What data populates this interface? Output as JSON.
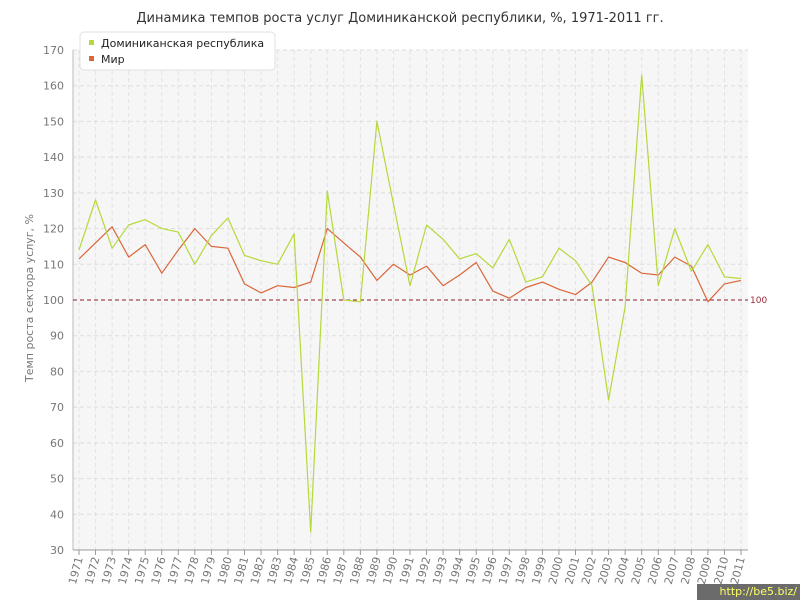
{
  "chart_data": {
    "type": "line",
    "title": "Динамика темпов роста услуг Доминиканской республики, %, 1971-2011 гг.",
    "xlabel": "",
    "ylabel": "Темп роста сектора услуг, %",
    "ylim": [
      30,
      170
    ],
    "yticks": [
      30,
      40,
      50,
      60,
      70,
      80,
      90,
      100,
      110,
      120,
      130,
      140,
      150,
      160,
      170
    ],
    "grid": true,
    "legend_position": "top-left",
    "x": [
      "1971",
      "1972",
      "1973",
      "1974",
      "1975",
      "1976",
      "1977",
      "1978",
      "1979",
      "1980",
      "1981",
      "1982",
      "1983",
      "1984",
      "1985",
      "1986",
      "1987",
      "1988",
      "1989",
      "1990",
      "1991",
      "1992",
      "1993",
      "1994",
      "1995",
      "1996",
      "1997",
      "1998",
      "1999",
      "2000",
      "2001",
      "2002",
      "2003",
      "2004",
      "2005",
      "2006",
      "2007",
      "2008",
      "2009",
      "2010",
      "2011"
    ],
    "series": [
      {
        "name": "Доминиканская республика",
        "color": "#b5d93a",
        "values": [
          114,
          128,
          114.5,
          121,
          122.5,
          120,
          119,
          110,
          118,
          123,
          112.5,
          111,
          110,
          118.5,
          35,
          130.5,
          100,
          99.5,
          150,
          127,
          104,
          121,
          117,
          111.5,
          113,
          109,
          117,
          105,
          106.5,
          114.5,
          111,
          104,
          72,
          98,
          163,
          104,
          120,
          108,
          115.5,
          106.5,
          106
        ]
      },
      {
        "name": "Мир",
        "color": "#d9663a",
        "values": [
          111.5,
          116,
          120.5,
          112,
          115.5,
          107.5,
          114,
          120,
          115,
          114.5,
          104.5,
          102,
          104,
          103.5,
          105,
          120,
          116,
          112,
          105.5,
          110,
          107,
          109.5,
          104,
          107,
          110.5,
          102.5,
          100.5,
          103.5,
          105,
          103,
          101.5,
          105,
          112,
          110.5,
          107.5,
          107,
          112,
          109.5,
          99.5,
          104.5,
          105.5
        ]
      }
    ],
    "reference_line": {
      "value": 100,
      "label": "100",
      "color": "#8b1a2b"
    }
  },
  "watermark": "http://be5.biz/"
}
